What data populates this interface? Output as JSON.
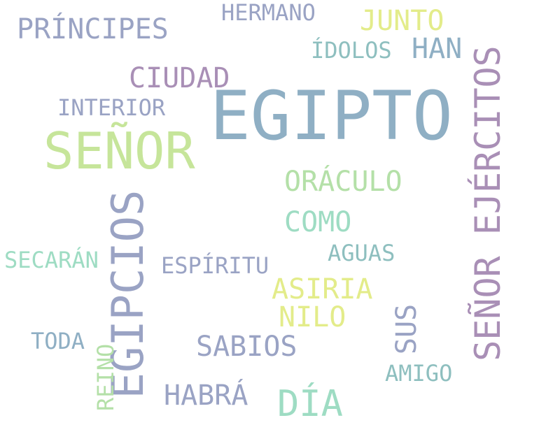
{
  "words": {
    "egipto": "EGIPTO",
    "senor": "SEÑOR",
    "egipcios": "EGIPCIOS",
    "senor_ejercitos": "SEÑOR EJÉRCITOS",
    "principes": "PRÍNCIPES",
    "hermano": "HERMANO",
    "junto": "JUNTO",
    "idolos": "ÍDOLOS",
    "han": "HAN",
    "ciudad": "CIUDAD",
    "interior": "INTERIOR",
    "oraculo": "ORÁCULO",
    "como": "COMO",
    "aguas": "AGUAS",
    "secaran": "SECARÁN",
    "espiritu": "ESPÍRITU",
    "asiria": "ASIRIA",
    "nilo": "NILO",
    "sus": "SUS",
    "sabios": "SABIOS",
    "toda": "TODA",
    "reino": "REINO",
    "amigo": "AMIGO",
    "habra": "HABRÁ",
    "dia": "DÍA"
  },
  "colors": {
    "steel": "#8fafc4",
    "lime": "#c6e59a",
    "lavender": "#9aa3c4",
    "mauve": "#a98fb6",
    "yellow": "#e3ec8a",
    "mint": "#9edcc3",
    "teal": "#8ebfbf",
    "light_green": "#b4e0a8"
  }
}
